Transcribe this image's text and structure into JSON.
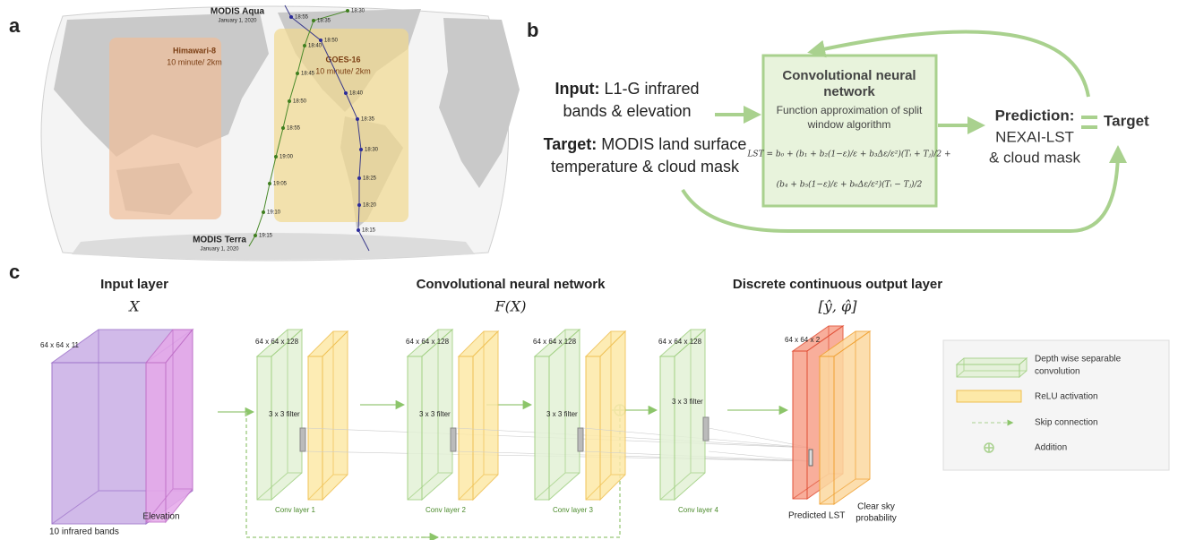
{
  "panel_a": {
    "label": "a",
    "aqua": {
      "name": "MODIS Aqua",
      "date": "January 1, 2020",
      "times": [
        "18:55",
        "18:50",
        "18:40",
        "18:35",
        "18:30",
        "18:25",
        "18:20",
        "18:15"
      ]
    },
    "terra": {
      "name": "MODIS Terra",
      "date": "January 1, 2020",
      "times": [
        "18:30",
        "18:35",
        "18:40",
        "18:45",
        "18:50",
        "18:55",
        "19:00",
        "19:05",
        "19:10",
        "19:15"
      ]
    },
    "himawari": {
      "name": "Himawari-8",
      "resolution": "10 minute/ 2km"
    },
    "goes": {
      "name": "GOES-16",
      "resolution": "10 minute/ 2km"
    }
  },
  "panel_b": {
    "label": "b",
    "input": {
      "heading": "Input:",
      "lines": [
        "L1-G infrared",
        "bands & elevation"
      ]
    },
    "target_input": {
      "heading": "Target:",
      "lines": [
        "MODIS land surface",
        "temperature & cloud mask"
      ]
    },
    "cnn_box": {
      "title": [
        "Convolutional neural",
        "network"
      ],
      "subtitle": [
        "Function approximation of split",
        "window algorithm"
      ],
      "equation": [
        "LST = b₀ + (b₁ + b₂(1−ε)/ε + b₃Δε/ε²)(Tᵢ + Tⱼ)/2 +",
        "(b₄ + b₅(1−ε)/ε + b₆Δε/ε²)(Tᵢ − Tⱼ)/2"
      ]
    },
    "prediction": {
      "heading": "Prediction:",
      "lines": [
        "NEXAI-LST",
        "& cloud mask"
      ]
    },
    "target": "Target"
  },
  "panel_c": {
    "label": "c",
    "sections": [
      {
        "title": "Input layer",
        "symbol": "X"
      },
      {
        "title": "Convolutional neural network",
        "symbol": "F(X)"
      },
      {
        "title": "Discrete continuous output layer",
        "symbol": "[ŷ, φ̂]"
      }
    ],
    "input_dims": "64 x 64 x 11",
    "input_bands": "10 infrared bands",
    "elevation": "Elevation",
    "conv_layers": [
      {
        "dims": "64 x 64 x 128",
        "filter": "3 x 3 filter",
        "name": "Conv layer 1"
      },
      {
        "dims": "64 x 64 x 128",
        "filter": "3 x 3 filter",
        "name": "Conv layer 2"
      },
      {
        "dims": "64 x 64 x 128",
        "filter": "3 x 3 filter",
        "name": "Conv layer 3"
      },
      {
        "dims": "64 x 64 x 128",
        "filter": "3 x 3 filter",
        "name": "Conv layer 4"
      }
    ],
    "output_dims": "64 x 64 x 2",
    "output_lst": "Predicted LST",
    "output_clear": [
      "Clear sky",
      "probability"
    ],
    "legend": {
      "conv": [
        "Depth wise separable",
        "convolution"
      ],
      "relu": "ReLU activation",
      "skip": "Skip connection",
      "addition": "Addition"
    }
  }
}
